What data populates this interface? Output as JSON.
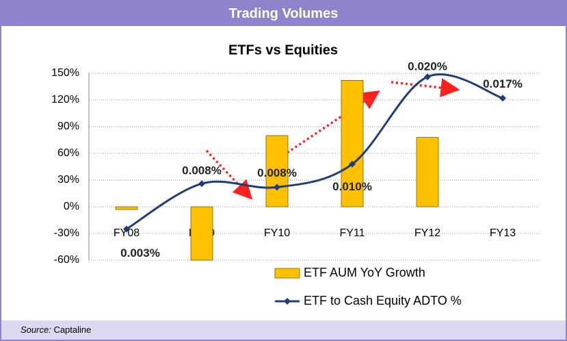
{
  "header": {
    "title": "Trading Volumes"
  },
  "footer": {
    "label": "Source:",
    "text": "Captaline"
  },
  "chart_data": {
    "type": "bar-line",
    "title": "ETFs vs Equities",
    "categories": [
      "FY08",
      "FY09",
      "FY10",
      "FY11",
      "FY12",
      "FY13"
    ],
    "series": [
      {
        "name": "ETF AUM YoY Growth",
        "type": "bar",
        "color": "#ffc000",
        "values": [
          -3,
          -60,
          80,
          142,
          78,
          null
        ]
      },
      {
        "name": "ETF to Cash Equity ADTO %",
        "type": "line",
        "color": "#1f3d7a",
        "values": [
          -25,
          26,
          22,
          48,
          146,
          122
        ]
      }
    ],
    "annotations": [
      "0.003%",
      "0.008%",
      "0.008%",
      "0.010%",
      "0.020%",
      "0.017%"
    ],
    "ylim": [
      -60,
      150
    ],
    "yticks": [
      {
        "value": -60,
        "label": "-60%"
      },
      {
        "value": -30,
        "label": "-30%"
      },
      {
        "value": 0,
        "label": "0%"
      },
      {
        "value": 30,
        "label": "30%"
      },
      {
        "value": 60,
        "label": "60%"
      },
      {
        "value": 90,
        "label": "90%"
      },
      {
        "value": 120,
        "label": "120%"
      },
      {
        "value": 150,
        "label": "150%"
      }
    ],
    "grid": true,
    "legend": "lower-right"
  }
}
